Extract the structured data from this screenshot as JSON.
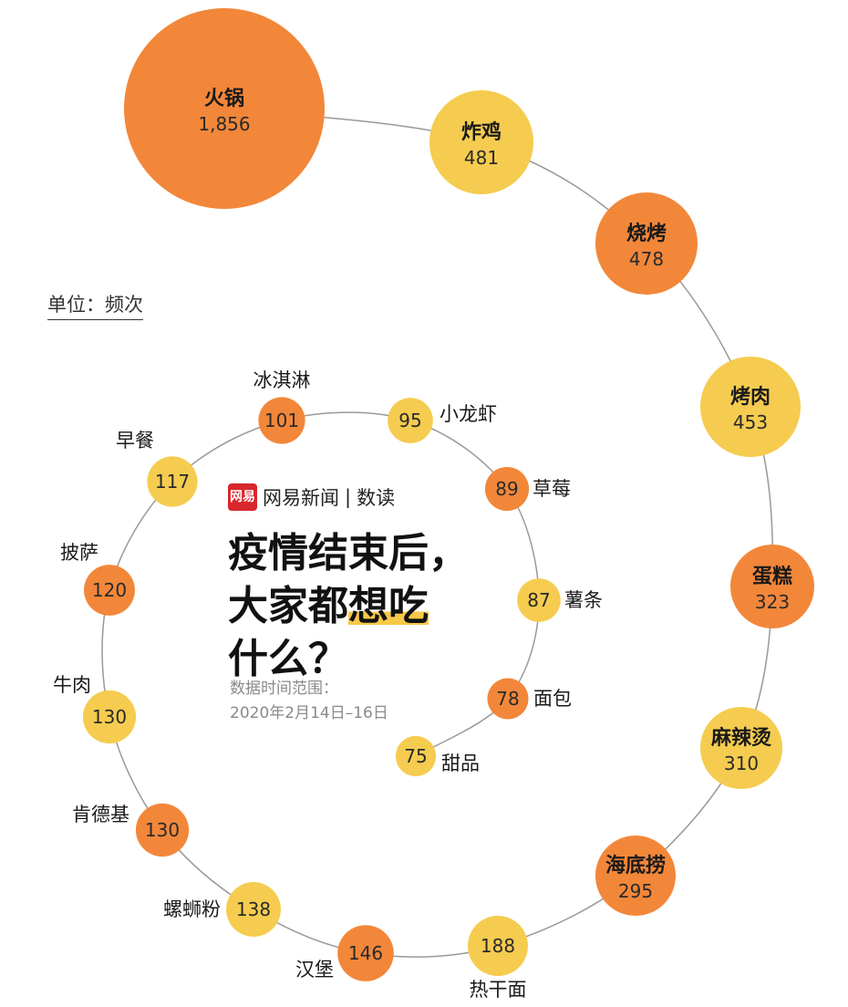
{
  "header": {
    "unit_label": "单位：频次",
    "brand_logo_text": "网易",
    "brand_name": "网易新闻",
    "brand_separator": "|",
    "brand_sub": "数读",
    "title_line1": "疫情结束后，",
    "title_line2_part1": "大家都",
    "title_line2_highlight": "想吃",
    "title_line3": "什么？",
    "date_label": "数据时间范围：",
    "date_range": "2020年2月14日–16日"
  },
  "colors": {
    "orange": "#f2873a",
    "yellow": "#f5cc4f",
    "line": "#999999",
    "highlight": "#f7c948",
    "logo_red": "#d8262c"
  },
  "chart_data": {
    "type": "bubble",
    "title": "疫情结束后，大家都想吃什么？",
    "unit": "单位：频次",
    "categories": [
      "火锅",
      "炸鸡",
      "烧烤",
      "烤肉",
      "蛋糕",
      "麻辣烫",
      "海底捞",
      "热干面",
      "汉堡",
      "螺蛳粉",
      "肯德基",
      "牛肉",
      "披萨",
      "早餐",
      "冰淇淋",
      "小龙虾",
      "草莓",
      "薯条",
      "面包",
      "甜品"
    ],
    "values": [
      1856,
      481,
      478,
      453,
      323,
      310,
      295,
      188,
      146,
      138,
      130,
      130,
      120,
      117,
      101,
      95,
      89,
      87,
      78,
      75
    ],
    "value_labels": [
      "1,856",
      "481",
      "478",
      "453",
      "323",
      "310",
      "295",
      "188",
      "146",
      "138",
      "130",
      "130",
      "120",
      "117",
      "101",
      "95",
      "89",
      "87",
      "78",
      "75"
    ],
    "colors": [
      "orange",
      "yellow",
      "orange",
      "yellow",
      "orange",
      "yellow",
      "orange",
      "yellow",
      "orange",
      "yellow",
      "orange",
      "yellow",
      "orange",
      "yellow",
      "orange",
      "yellow",
      "orange",
      "yellow",
      "orange",
      "yellow"
    ]
  }
}
